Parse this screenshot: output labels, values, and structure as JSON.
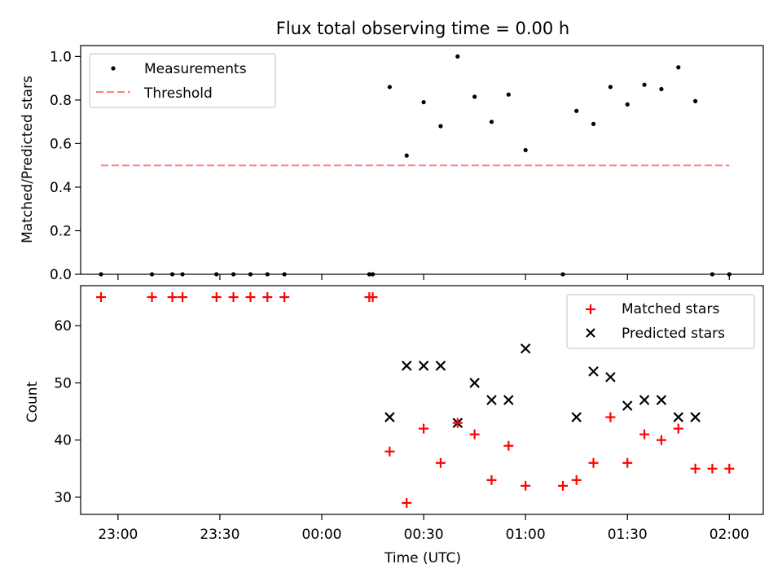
{
  "title": "Flux total observing time = 0.00 h",
  "colors": {
    "measurement": "#000000",
    "threshold": "#ff7f7f",
    "matched": "#ff0000",
    "predicted": "#000000"
  },
  "chart_data": [
    {
      "type": "scatter",
      "panel": "top",
      "ylabel": "Matched/Predicted stars",
      "ylim": [
        0,
        1.05
      ],
      "yticks": [
        "0.0",
        "0.2",
        "0.4",
        "0.6",
        "0.8",
        "1.0"
      ],
      "legend": {
        "placement": "top-left",
        "entries": [
          "Measurements",
          "Threshold"
        ]
      },
      "series": [
        {
          "name": "Measurements",
          "marker": "dot",
          "points": [
            [
              "22:55",
              0
            ],
            [
              "23:10",
              0
            ],
            [
              "23:16",
              0
            ],
            [
              "23:19",
              0
            ],
            [
              "23:29",
              0
            ],
            [
              "23:34",
              0
            ],
            [
              "23:39",
              0
            ],
            [
              "23:44",
              0
            ],
            [
              "23:49",
              0
            ],
            [
              "00:14",
              0
            ],
            [
              "00:15",
              0
            ],
            [
              "00:20",
              0.86
            ],
            [
              "00:25",
              0.545
            ],
            [
              "00:30",
              0.79
            ],
            [
              "00:35",
              0.68
            ],
            [
              "00:40",
              1.0
            ],
            [
              "00:45",
              0.815
            ],
            [
              "00:50",
              0.7
            ],
            [
              "00:55",
              0.825
            ],
            [
              "01:00",
              0.57
            ],
            [
              "01:11",
              0
            ],
            [
              "01:15",
              0.75
            ],
            [
              "01:20",
              0.69
            ],
            [
              "01:25",
              0.86
            ],
            [
              "01:30",
              0.78
            ],
            [
              "01:35",
              0.87
            ],
            [
              "01:40",
              0.85
            ],
            [
              "01:45",
              0.95
            ],
            [
              "01:50",
              0.795
            ],
            [
              "01:55",
              0
            ],
            [
              "02:00",
              0
            ]
          ]
        },
        {
          "name": "Threshold",
          "marker": "dashed-line",
          "points": [
            [
              "22:55",
              0.5
            ],
            [
              "02:00",
              0.5
            ]
          ]
        }
      ]
    },
    {
      "type": "scatter",
      "panel": "bottom",
      "ylabel": "Count",
      "xlabel": "Time (UTC)",
      "ylim": [
        27,
        67
      ],
      "yticks": [
        "30",
        "40",
        "50",
        "60"
      ],
      "xticks": [
        "23:00",
        "23:30",
        "00:00",
        "00:30",
        "01:00",
        "01:30",
        "02:00"
      ],
      "legend": {
        "placement": "top-right",
        "entries": [
          "Matched stars",
          "Predicted stars"
        ]
      },
      "series": [
        {
          "name": "Matched stars",
          "marker": "plus",
          "points": [
            [
              "22:55",
              65
            ],
            [
              "23:10",
              65
            ],
            [
              "23:16",
              65
            ],
            [
              "23:19",
              65
            ],
            [
              "23:29",
              65
            ],
            [
              "23:34",
              65
            ],
            [
              "23:39",
              65
            ],
            [
              "23:44",
              65
            ],
            [
              "23:49",
              65
            ],
            [
              "00:14",
              65
            ],
            [
              "00:15",
              65
            ],
            [
              "00:20",
              38
            ],
            [
              "00:25",
              29
            ],
            [
              "00:30",
              42
            ],
            [
              "00:35",
              36
            ],
            [
              "00:40",
              43
            ],
            [
              "00:45",
              41
            ],
            [
              "00:50",
              33
            ],
            [
              "00:55",
              39
            ],
            [
              "01:00",
              32
            ],
            [
              "01:11",
              32
            ],
            [
              "01:15",
              33
            ],
            [
              "01:20",
              36
            ],
            [
              "01:25",
              44
            ],
            [
              "01:30",
              36
            ],
            [
              "01:35",
              41
            ],
            [
              "01:40",
              40
            ],
            [
              "01:45",
              42
            ],
            [
              "01:50",
              35
            ],
            [
              "01:55",
              35
            ],
            [
              "02:00",
              35
            ]
          ]
        },
        {
          "name": "Predicted stars",
          "marker": "x",
          "points": [
            [
              "00:20",
              44
            ],
            [
              "00:25",
              53
            ],
            [
              "00:30",
              53
            ],
            [
              "00:35",
              53
            ],
            [
              "00:40",
              43
            ],
            [
              "00:45",
              50
            ],
            [
              "00:50",
              47
            ],
            [
              "00:55",
              47
            ],
            [
              "01:00",
              56
            ],
            [
              "01:15",
              44
            ],
            [
              "01:20",
              52
            ],
            [
              "01:25",
              51
            ],
            [
              "01:30",
              46
            ],
            [
              "01:35",
              47
            ],
            [
              "01:40",
              47
            ],
            [
              "01:45",
              44
            ],
            [
              "01:50",
              44
            ]
          ]
        }
      ]
    }
  ]
}
